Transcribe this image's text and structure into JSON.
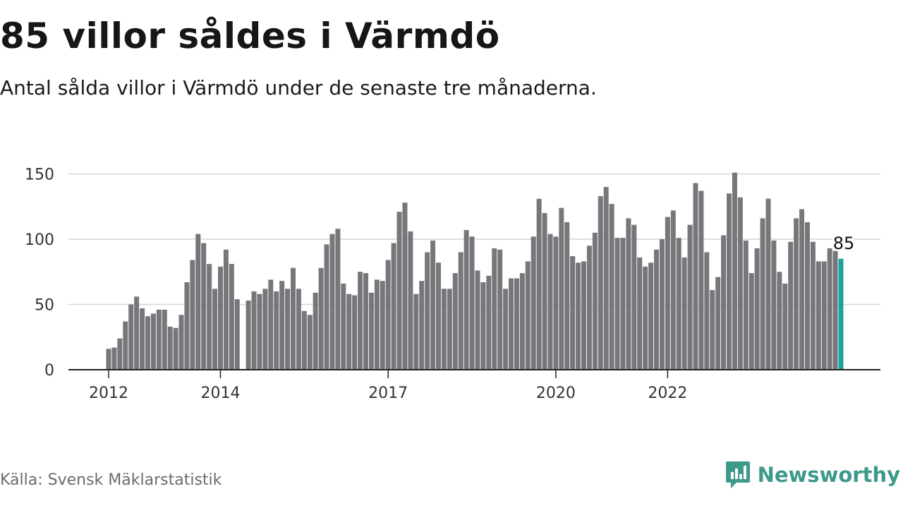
{
  "title": "85 villor såldes i Värmdö",
  "subtitle": "Antal sålda villor i Värmdö under de senaste tre månaderna.",
  "source": "Källa: Svensk Mäklarstatistik",
  "brand": {
    "name": "Newsworthy",
    "icon": "bar-chart-speech-bubble-icon",
    "color": "#3d9a8b"
  },
  "chart_data": {
    "type": "bar",
    "title": "85 villor såldes i Värmdö",
    "xlabel": "",
    "ylabel": "",
    "ylim": [
      0,
      160
    ],
    "yticks": [
      0,
      50,
      100,
      150
    ],
    "grid": true,
    "colors": {
      "bar": "#77767b",
      "highlight": "#1aa39a",
      "grid": "#d6d6d6",
      "axis": "#222222"
    },
    "x_tick_labels": [
      {
        "label": "2012",
        "index": 0
      },
      {
        "label": "2014",
        "index": 20
      },
      {
        "label": "2017",
        "index": 50
      },
      {
        "label": "2020",
        "index": 80
      },
      {
        "label": "2022",
        "index": 100
      }
    ],
    "highlight_label": "85",
    "values": [
      16,
      17,
      24,
      37,
      50,
      56,
      47,
      41,
      43,
      46,
      46,
      33,
      32,
      42,
      67,
      84,
      104,
      97,
      81,
      62,
      79,
      92,
      81,
      54,
      null,
      53,
      60,
      58,
      62,
      69,
      60,
      68,
      62,
      78,
      62,
      45,
      42,
      59,
      78,
      96,
      104,
      108,
      66,
      58,
      57,
      75,
      74,
      59,
      69,
      68,
      84,
      97,
      121,
      128,
      106,
      58,
      68,
      90,
      99,
      82,
      62,
      62,
      74,
      90,
      107,
      102,
      76,
      67,
      72,
      93,
      92,
      62,
      70,
      70,
      74,
      83,
      102,
      131,
      120,
      104,
      102,
      124,
      113,
      87,
      82,
      83,
      95,
      105,
      133,
      140,
      127,
      101,
      101,
      116,
      111,
      86,
      79,
      82,
      92,
      100,
      117,
      122,
      101,
      86,
      111,
      143,
      137,
      90,
      61,
      71,
      103,
      135,
      151,
      132,
      99,
      74,
      93,
      116,
      131,
      99,
      75,
      66,
      98,
      116,
      123,
      113,
      98,
      83,
      83,
      93,
      91,
      85
    ]
  }
}
